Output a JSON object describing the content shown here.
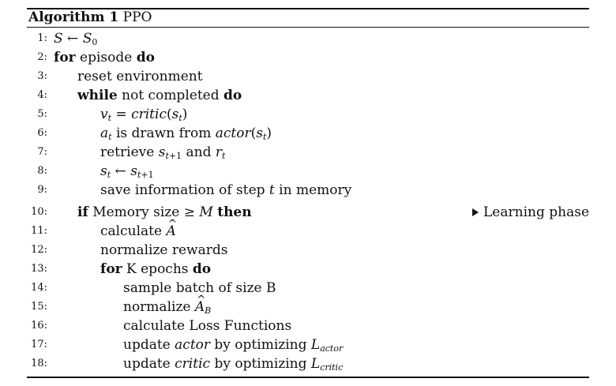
{
  "caption": {
    "label": "Algorithm 1",
    "name": "PPO"
  },
  "lines": [
    {
      "num": "1:"
    },
    {
      "num": "2:",
      "kw1": "for",
      "text": "episode",
      "kw2": "do"
    },
    {
      "num": "3:",
      "text": "reset environment"
    },
    {
      "num": "4:",
      "kw1": "while",
      "text": "not completed",
      "kw2": "do"
    },
    {
      "num": "5:",
      "fn": "critic"
    },
    {
      "num": "6:",
      "text": "is drawn from",
      "fn": "actor"
    },
    {
      "num": "7:",
      "text": "retrieve",
      "conj": "and"
    },
    {
      "num": "8:"
    },
    {
      "num": "9:",
      "pre": "save information of step",
      "post": "in memory"
    },
    {
      "num": "10:",
      "kw1": "if",
      "text": "Memory size",
      "kw2": "then",
      "comment": "Learning phase"
    },
    {
      "num": "11:",
      "text": "calculate"
    },
    {
      "num": "12:",
      "text": "normalize rewards"
    },
    {
      "num": "13:",
      "kw1": "for",
      "text": "K epochs",
      "kw2": "do"
    },
    {
      "num": "14:",
      "text": "sample batch of size B"
    },
    {
      "num": "15:",
      "text": "normalize"
    },
    {
      "num": "16:",
      "text": "calculate Loss Functions"
    },
    {
      "num": "17:",
      "pre": "update",
      "fn": "actor",
      "post": "by optimizing",
      "sub": "actor"
    },
    {
      "num": "18:",
      "pre": "update",
      "fn": "critic",
      "post": "by optimizing",
      "sub": "critic"
    }
  ]
}
